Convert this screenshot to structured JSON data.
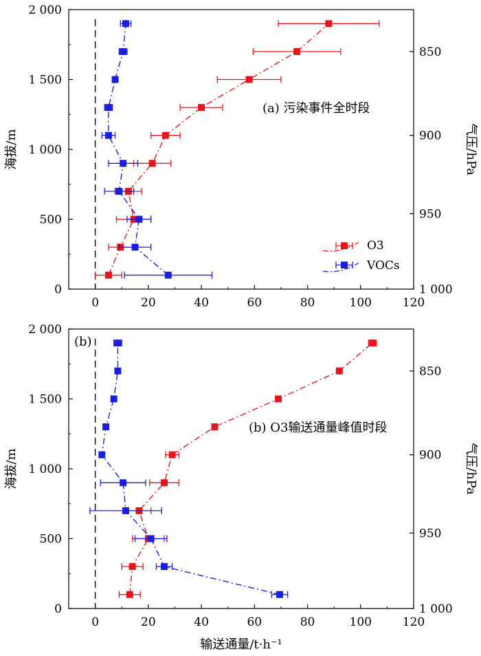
{
  "chart_data": [
    {
      "type": "line",
      "panel_label": "(a) 污染事件全时段",
      "xlabel": "",
      "ylabel": "海拔/m",
      "ylabel_right": "气压/hPa",
      "xlim": [
        -10,
        120
      ],
      "ylim": [
        0,
        2000
      ],
      "x_ticks": [
        "0",
        "20",
        "40",
        "60",
        "80",
        "100",
        "120"
      ],
      "y_ticks": [
        "0",
        "500",
        "1 000",
        "1 500",
        "2 000"
      ],
      "right_ticks": [
        {
          "label": "850",
          "altitude": 1700
        },
        {
          "label": "900",
          "altitude": 1100
        },
        {
          "label": "950",
          "altitude": 540
        },
        {
          "label": "1 000",
          "altitude": 0
        }
      ],
      "zero_line": "dashed vertical at x = 0",
      "grid": false,
      "legend": {
        "position": "right-middle",
        "entries": [
          "O3",
          "VOCs"
        ]
      },
      "series": [
        {
          "name": "O3",
          "color": "#e8141c",
          "linestyle": "dash-dot",
          "marker": "square",
          "points": [
            {
              "x": 5,
              "y": 100,
              "err": 5
            },
            {
              "x": 9.5,
              "y": 300,
              "err": 4.5
            },
            {
              "x": 14.5,
              "y": 500,
              "err": 6.5
            },
            {
              "x": 12.5,
              "y": 700,
              "err": 5
            },
            {
              "x": 21.5,
              "y": 900,
              "err": 7
            },
            {
              "x": 26.5,
              "y": 1100,
              "err": 5.5
            },
            {
              "x": 40,
              "y": 1300,
              "err": 8
            },
            {
              "x": 58,
              "y": 1500,
              "err": 12
            },
            {
              "x": 76,
              "y": 1700,
              "err": 16.5
            },
            {
              "x": 88,
              "y": 1900,
              "err": 19
            }
          ]
        },
        {
          "name": "VOCs",
          "color": "#1a1ee0",
          "linestyle": "dash-dot",
          "marker": "square",
          "points": [
            {
              "x": 27.5,
              "y": 100,
              "err": 16.5
            },
            {
              "x": 15,
              "y": 300,
              "err": 6
            },
            {
              "x": 16.5,
              "y": 500,
              "err": 4.5
            },
            {
              "x": 9,
              "y": 700,
              "err": 5.5
            },
            {
              "x": 10.5,
              "y": 900,
              "err": 5.5
            },
            {
              "x": 5,
              "y": 1100,
              "err": 2.5
            },
            {
              "x": 5,
              "y": 1300,
              "err": 1.5
            },
            {
              "x": 7.5,
              "y": 1500,
              "err": 1
            },
            {
              "x": 10.5,
              "y": 1700,
              "err": 1.5
            },
            {
              "x": 11.5,
              "y": 1900,
              "err": 2
            }
          ]
        }
      ]
    },
    {
      "type": "line",
      "panel_label": "(b) O3输送通量峰值时段",
      "corner_label": "(b)",
      "xlabel": "输送通量/t·h⁻¹",
      "ylabel": "海拔/m",
      "ylabel_right": "气压/hPa",
      "xlim": [
        -10,
        120
      ],
      "ylim": [
        0,
        2000
      ],
      "x_ticks": [
        "0",
        "20",
        "40",
        "60",
        "80",
        "100",
        "120"
      ],
      "y_ticks": [
        "0",
        "500",
        "1 000",
        "1 500",
        "2 000"
      ],
      "right_ticks": [
        {
          "label": "850",
          "altitude": 1700
        },
        {
          "label": "900",
          "altitude": 1100
        },
        {
          "label": "950",
          "altitude": 540
        },
        {
          "label": "1 000",
          "altitude": 0
        }
      ],
      "zero_line": "dashed vertical at x = 0",
      "grid": false,
      "series": [
        {
          "name": "O3",
          "color": "#e8141c",
          "linestyle": "dash-dot",
          "marker": "square",
          "points": [
            {
              "x": 13,
              "y": 100,
              "err": 4
            },
            {
              "x": 14,
              "y": 300,
              "err": 4
            },
            {
              "x": 20,
              "y": 500,
              "err": 6
            },
            {
              "x": 16.5,
              "y": 700,
              "err": 4.5
            },
            {
              "x": 26,
              "y": 900,
              "err": 5.5
            },
            {
              "x": 29,
              "y": 1100,
              "err": 2.5
            },
            {
              "x": 45,
              "y": 1300,
              "err": 0
            },
            {
              "x": 69,
              "y": 1500,
              "err": 0
            },
            {
              "x": 92,
              "y": 1700,
              "err": 0
            },
            {
              "x": 104.5,
              "y": 1900,
              "err": 1.5
            }
          ]
        },
        {
          "name": "VOCs",
          "color": "#1a1ee0",
          "linestyle": "dash-dot",
          "marker": "square",
          "points": [
            {
              "x": 69.5,
              "y": 100,
              "err": 3
            },
            {
              "x": 26,
              "y": 300,
              "err": 3
            },
            {
              "x": 21,
              "y": 500,
              "err": 6
            },
            {
              "x": 11.5,
              "y": 700,
              "err": 13.5
            },
            {
              "x": 10.5,
              "y": 900,
              "err": 8.5
            },
            {
              "x": 2.5,
              "y": 1100,
              "err": 0
            },
            {
              "x": 4,
              "y": 1300,
              "err": 0
            },
            {
              "x": 7,
              "y": 1500,
              "err": 0
            },
            {
              "x": 8.5,
              "y": 1700,
              "err": 0
            },
            {
              "x": 8.5,
              "y": 1900,
              "err": 1.5
            }
          ]
        }
      ]
    }
  ]
}
